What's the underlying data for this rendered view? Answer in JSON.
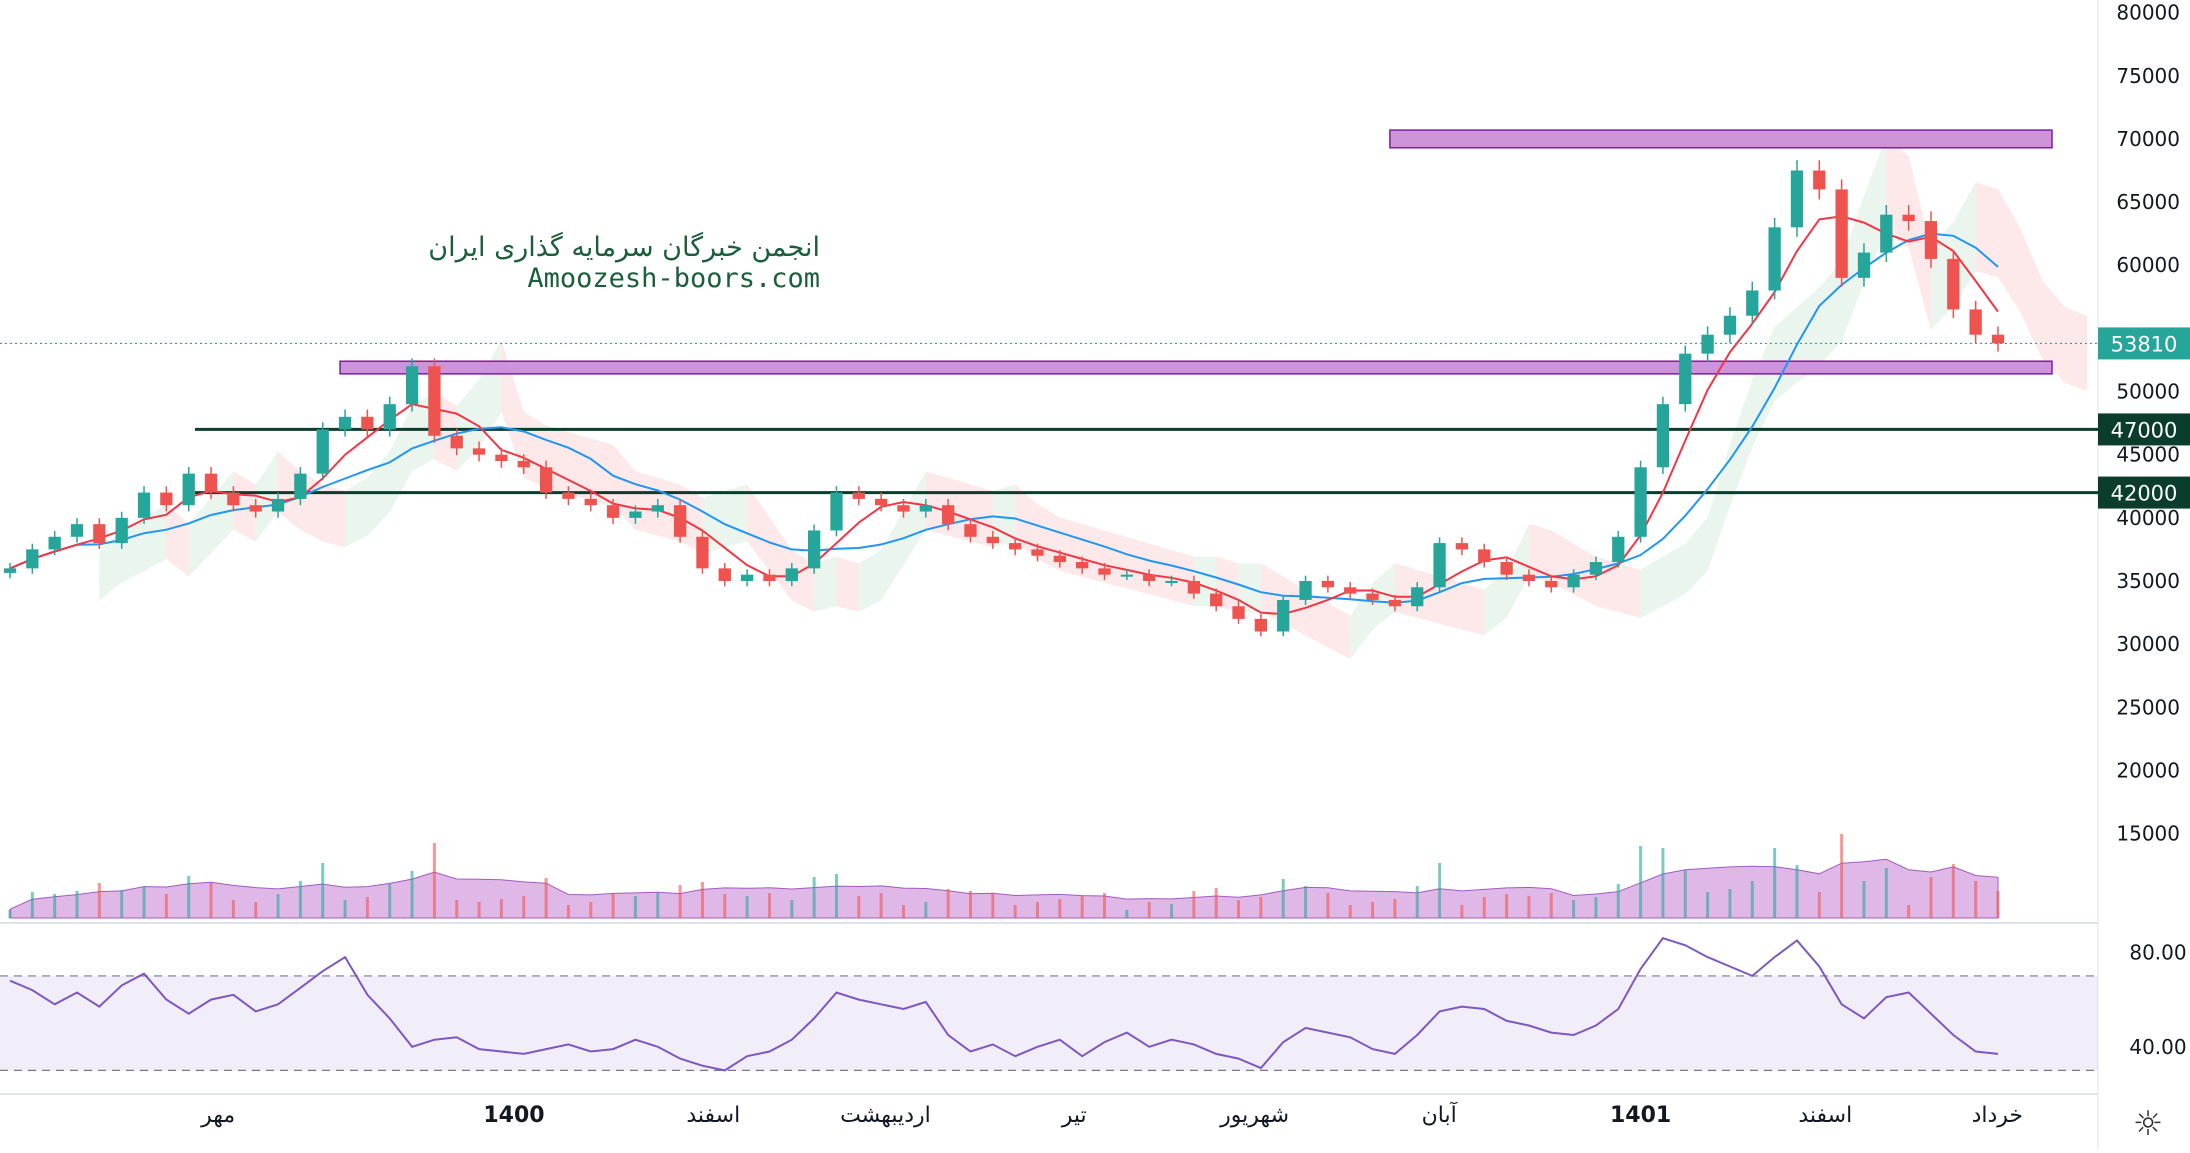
{
  "watermark": {
    "line1": "انجمن خبرگان سرمایه گذاری ایران",
    "line2": "Amoozesh-boors.com"
  },
  "colors": {
    "up": "#26a69a",
    "down": "#ef5350",
    "ma_fast": "#f23645",
    "ma_slow": "#2196f3",
    "zone": "#ce93d8",
    "zone_border": "#7b1fa2",
    "support": "#0b3d2c",
    "rsi": "#7e57c2",
    "price_tag": "#26a69a",
    "cloud_green": "#e3f2e8",
    "cloud_red": "#fde4e4",
    "volume_ma": "#c77dd6"
  },
  "icons": {
    "settings": "sun-gear-icon"
  },
  "chart_data": {
    "type": "candlestick",
    "price_axis": {
      "ticks": [
        "80000",
        "75000",
        "70000",
        "65000",
        "60000",
        "55000",
        "50000",
        "45000",
        "40000",
        "35000",
        "30000",
        "25000",
        "20000",
        "15000"
      ],
      "range": [
        8000,
        81000
      ]
    },
    "rsi_axis": {
      "ticks": [
        "80.00",
        "40.00"
      ],
      "bands": [
        70,
        30
      ],
      "range": [
        20,
        92
      ]
    },
    "time_axis": {
      "labels": [
        "مهر",
        "1400",
        "اسفند",
        "اردیبهشت",
        "تیر",
        "شهریور",
        "آبان",
        "1401",
        "اسفند",
        "خرداد"
      ],
      "bold": [
        false,
        true,
        false,
        false,
        false,
        false,
        false,
        true,
        false,
        false
      ]
    },
    "current_price": {
      "value": 53810,
      "label": "53810"
    },
    "horizontal_levels": [
      {
        "label": "47000",
        "value": 47000
      },
      {
        "label": "42000",
        "value": 42000
      }
    ],
    "zones": [
      {
        "low": 69300,
        "high": 70700,
        "from_index": 62,
        "to_index": 120
      },
      {
        "low": 51400,
        "high": 52400,
        "from_index": 15,
        "to_index": 120
      }
    ],
    "closes": [
      36000,
      37500,
      38500,
      39500,
      38000,
      40000,
      42000,
      41000,
      43500,
      42000,
      41000,
      40500,
      41500,
      43500,
      47000,
      48000,
      47000,
      49000,
      52000,
      46500,
      45500,
      45000,
      44500,
      44000,
      42000,
      41500,
      41000,
      40000,
      40500,
      41000,
      38500,
      36000,
      35000,
      35500,
      35000,
      36000,
      39000,
      42000,
      41500,
      41000,
      40500,
      41000,
      39500,
      38500,
      38000,
      37500,
      37000,
      36500,
      36000,
      35500,
      35500,
      35000,
      35000,
      34000,
      33000,
      32000,
      31000,
      33500,
      35000,
      34500,
      34000,
      33500,
      33000,
      34500,
      38000,
      37500,
      36500,
      35500,
      35000,
      34500,
      35500,
      36500,
      38500,
      44000,
      49000,
      53000,
      54500,
      56000,
      58000,
      63000,
      67500,
      66000,
      59000,
      61000,
      64000,
      63500,
      60500,
      56500,
      54500,
      53810
    ],
    "rsi": [
      68,
      64,
      58,
      63,
      57,
      66,
      71,
      60,
      54,
      60,
      62,
      55,
      58,
      65,
      72,
      78,
      62,
      52,
      40,
      43,
      44,
      39,
      38,
      37,
      39,
      41,
      38,
      39,
      43,
      40,
      35,
      32,
      30,
      36,
      38,
      43,
      52,
      63,
      60,
      58,
      56,
      59,
      45,
      38,
      41,
      36,
      40,
      43,
      36,
      42,
      46,
      40,
      43,
      41,
      37,
      35,
      31,
      42,
      48,
      46,
      44,
      39,
      37,
      45,
      55,
      57,
      56,
      51,
      49,
      46,
      45,
      49,
      56,
      73,
      86,
      83,
      78,
      74,
      70,
      78,
      85,
      74,
      58,
      52,
      61,
      63,
      54,
      45,
      38,
      37
    ]
  }
}
